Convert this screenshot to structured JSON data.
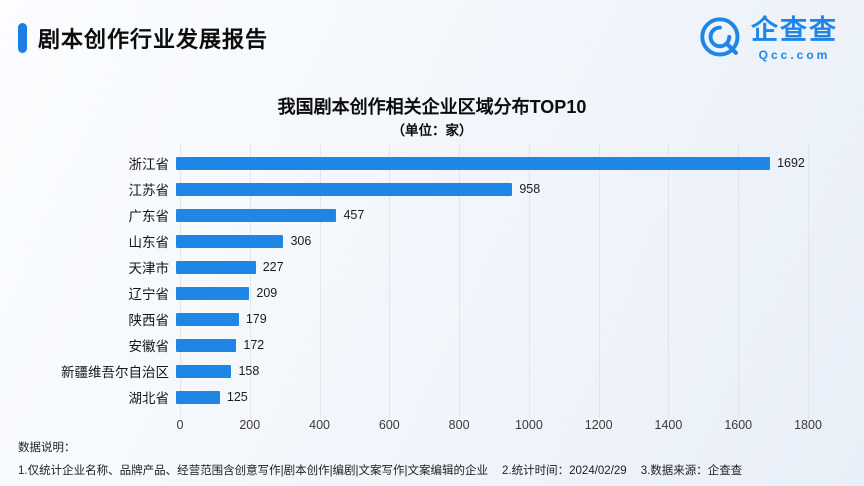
{
  "accent_color": "#1b7fe3",
  "header": {
    "title": "剧本创作行业发展报告"
  },
  "logo": {
    "name": "企查查",
    "domain": "Qcc.com"
  },
  "chart_data": {
    "type": "bar",
    "orientation": "horizontal",
    "title": "我国剧本创作相关企业区域分布TOP10",
    "subtitle": "（单位：家）",
    "categories": [
      "浙江省",
      "江苏省",
      "广东省",
      "山东省",
      "天津市",
      "辽宁省",
      "陕西省",
      "安徽省",
      "新疆维吾尔自治区",
      "湖北省"
    ],
    "values": [
      1692,
      958,
      457,
      306,
      227,
      209,
      179,
      172,
      158,
      125
    ],
    "xlim": [
      0,
      1800
    ],
    "x_ticks": [
      0,
      200,
      400,
      600,
      800,
      1000,
      1200,
      1400,
      1600,
      1800
    ],
    "bar_color": "#1e87e6",
    "grid": true,
    "legend": "none"
  },
  "footer": {
    "heading": "数据说明：",
    "notes": [
      "1.仅统计企业名称、品牌产品、经营范围含创意写作|剧本创作|编剧|文案写作|文案编辑的企业",
      "2.统计时间：2024/02/29",
      "3.数据来源：企查查"
    ]
  }
}
